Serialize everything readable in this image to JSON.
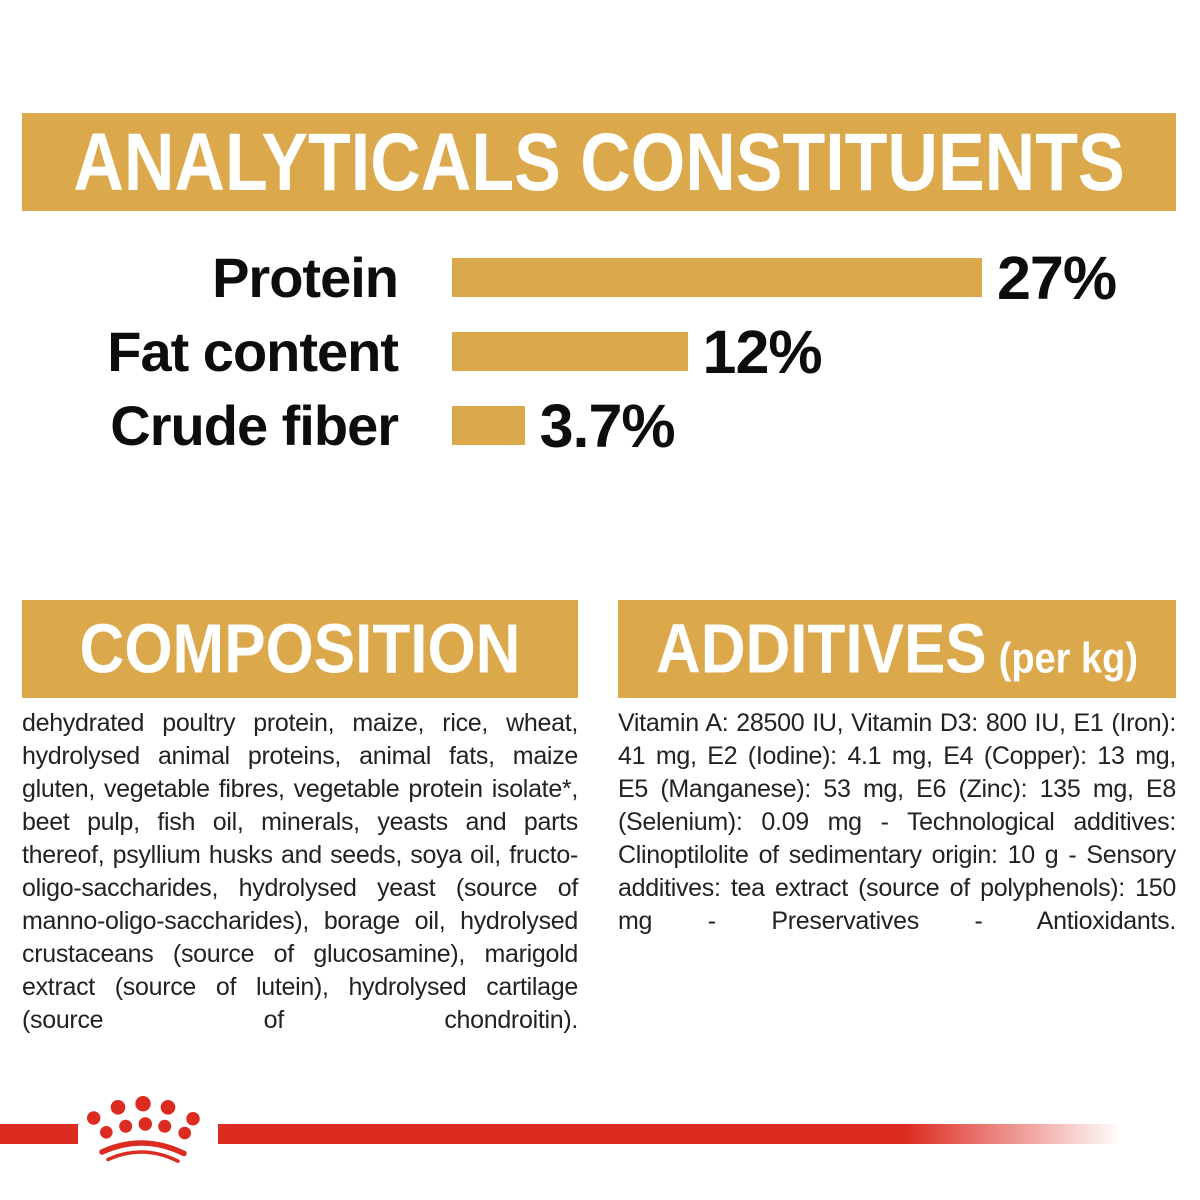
{
  "colors": {
    "gold": "#DBA94B",
    "red": "#DC2B21",
    "ink": "#1B1B1B"
  },
  "analyticals": {
    "title": "ANALYTICALS CONSTITUENTS",
    "rows": [
      {
        "label": "Protein",
        "value_label": "27%"
      },
      {
        "label": "Fat content",
        "value_label": "12%"
      },
      {
        "label": "Crude fiber",
        "value_label": "3.7%"
      }
    ]
  },
  "chart_data": {
    "type": "bar",
    "orientation": "horizontal",
    "title": "ANALYTICALS CONSTITUENTS",
    "categories": [
      "Protein",
      "Fat content",
      "Crude fiber"
    ],
    "values": [
      27,
      12,
      3.7
    ],
    "value_labels": [
      "27%",
      "12%",
      "3.7%"
    ],
    "xlim": [
      0,
      27
    ],
    "bar_color": "#DBA94B",
    "grid": false,
    "legend": "none",
    "value_label_position": "end-of-bar"
  },
  "composition": {
    "title": "COMPOSITION",
    "body": "dehydrated poultry protein, maize, rice, wheat, hydrolysed animal proteins, animal fats, maize gluten, vegetable fibres, vegetable protein isolate*, beet pulp, fish oil, minerals, yeasts and parts thereof, psyllium husks and seeds, soya oil, fructo-oligo-saccharides, hydrolysed yeast (source of manno-oligo-saccharides), borage oil, hydrolysed crustaceans (source of glucosamine), marigold extract (source of lutein), hydrolysed cartilage (source of chondroitin)."
  },
  "additives": {
    "title": "ADDITIVES",
    "unit_suffix": "(per kg)",
    "body": "Vitamin A: 28500 IU, Vitamin D3: 800 IU, E1 (Iron): 41 mg, E2 (Iodine): 4.1 mg, E4 (Copper): 13 mg, E5 (Manganese): 53 mg, E6 (Zinc): 135 mg, E8 (Selenium): 0.09 mg - Technological additives: Clinoptilolite of sedimentary origin: 10 g - Sensory additives: tea extract (source of polyphenols): 150 mg - Preservatives - Antioxidants."
  },
  "footer": {
    "logo": "royal-canin-crown"
  }
}
